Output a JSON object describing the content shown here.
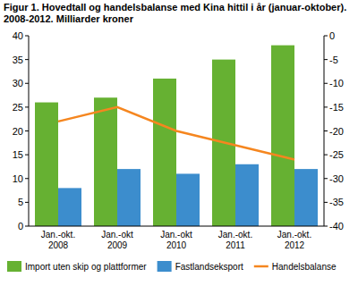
{
  "chart_data": {
    "type": "bar",
    "title": "Figur 1. Hovedtall og handelsbalanse med Kina hittil i år (januar-oktober). 2008-2012. Milliarder kroner",
    "categories": [
      "Jan.-okt. 2008",
      "Jan.-okt 2009",
      "Jan.-okt 2010",
      "Jan.-okt. 2011",
      "Jan.-okt. 2012"
    ],
    "series": [
      {
        "name": "Import uten skip og plattformer",
        "color": "#66b132",
        "type": "bar",
        "values": [
          26,
          27,
          31,
          35,
          38
        ]
      },
      {
        "name": "Fastlandseksport",
        "color": "#3c8dcd",
        "type": "bar",
        "values": [
          8,
          12,
          11,
          13,
          12
        ]
      },
      {
        "name": "Handelsbalanse",
        "color": "#f5861f",
        "type": "line",
        "axis": "y2",
        "values": [
          -18,
          -15,
          -20,
          -23,
          -26
        ]
      }
    ],
    "ylim": [
      0,
      40
    ],
    "yticks": [
      0,
      5,
      10,
      15,
      20,
      25,
      30,
      35,
      40
    ],
    "y2lim": [
      -40,
      0
    ],
    "y2ticks": [
      -40,
      -35,
      -30,
      -25,
      -20,
      -15,
      -10,
      -5,
      0
    ],
    "grid": false,
    "legend": "bottom"
  }
}
